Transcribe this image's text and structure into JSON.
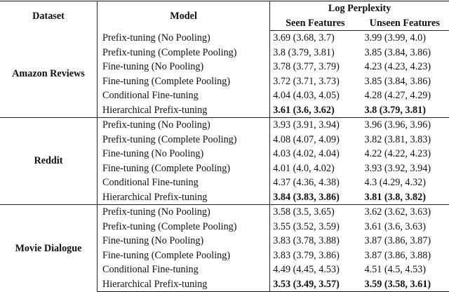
{
  "headers": {
    "dataset": "Dataset",
    "model": "Model",
    "metric": "Log Perplexity",
    "seen": "Seen Features",
    "unseen": "Unseen Features"
  },
  "groups": [
    {
      "dataset": "Amazon Reviews",
      "rows": [
        {
          "model": "Prefix-tuning (No Pooling)",
          "seen": "3.69 (3.68, 3.7)",
          "unseen": "3.99 (3.99, 4.0)",
          "best": false
        },
        {
          "model": "Prefix-tuning (Complete Pooling)",
          "seen": "3.8 (3.79, 3.81)",
          "unseen": "3.85 (3.84, 3.86)",
          "best": false
        },
        {
          "model": "Fine-tuning (No Pooling)",
          "seen": "3.78 (3.77, 3.79)",
          "unseen": "4.23 (4.23, 4.23)",
          "best": false
        },
        {
          "model": "Fine-tuning (Complete Pooling)",
          "seen": "3.72 (3.71, 3.73)",
          "unseen": "3.85 (3.84, 3.86)",
          "best": false
        },
        {
          "model": "Conditional Fine-tuning",
          "seen": "4.04 (4.03, 4.05)",
          "unseen": "4.28 (4.27, 4.29)",
          "best": false
        },
        {
          "model": "Hierarchical Prefix-tuning",
          "seen": "3.61 (3.6, 3.62)",
          "unseen": "3.8 (3.79, 3.81)",
          "best": true
        }
      ]
    },
    {
      "dataset": "Reddit",
      "rows": [
        {
          "model": "Prefix-tuning (No Pooling)",
          "seen": "3.93 (3.91, 3.94)",
          "unseen": "3.96 (3.96, 3.96)",
          "best": false
        },
        {
          "model": "Prefix-tuning (Complete Pooling)",
          "seen": "4.08 (4.07, 4.09)",
          "unseen": "3.82 (3.81, 3.83)",
          "best": false
        },
        {
          "model": "Fine-tuning (No Pooling)",
          "seen": "4.03 (4.02, 4.04)",
          "unseen": "4.22 (4.22, 4.23)",
          "best": false
        },
        {
          "model": "Fine-tuning (Complete Pooling)",
          "seen": "4.01 (4.0, 4.02)",
          "unseen": "3.93 (3.92, 3.94)",
          "best": false
        },
        {
          "model": "Conditional Fine-tuning",
          "seen": "4.37 (4.36, 4.38)",
          "unseen": "4.3 (4.29, 4.32)",
          "best": false
        },
        {
          "model": "Hierarchical Prefix-tuning",
          "seen": "3.84 (3.83, 3.86)",
          "unseen": "3.81 (3.8, 3.82)",
          "best": true
        }
      ]
    },
    {
      "dataset": "Movie Dialogue",
      "rows": [
        {
          "model": "Prefix-tuning (No Pooling)",
          "seen": "3.58 (3.5, 3.65)",
          "unseen": "3.62 (3.62, 3.63)",
          "best": false
        },
        {
          "model": "Prefix-tuning (Complete Pooling)",
          "seen": "3.55 (3.52, 3.59)",
          "unseen": "3.61 (3.6, 3.63)",
          "best": false
        },
        {
          "model": "Fine-tuning (No Pooling)",
          "seen": "3.83 (3.78, 3.88)",
          "unseen": "3.87 (3.86, 3.87)",
          "best": false
        },
        {
          "model": "Fine-tuning (Complete Pooling)",
          "seen": "3.83 (3.79, 3.86)",
          "unseen": "3.87 (3.86, 3.88)",
          "best": false
        },
        {
          "model": "Conditional Fine-tuning",
          "seen": "4.49 (4.45, 4.53)",
          "unseen": "4.51 (4.5, 4.53)",
          "best": false
        },
        {
          "model": "Hierarchical Prefix-tuning",
          "seen": "3.53 (3.49, 3.57)",
          "unseen": "3.59 (3.58, 3.61)",
          "best": true
        }
      ]
    }
  ]
}
